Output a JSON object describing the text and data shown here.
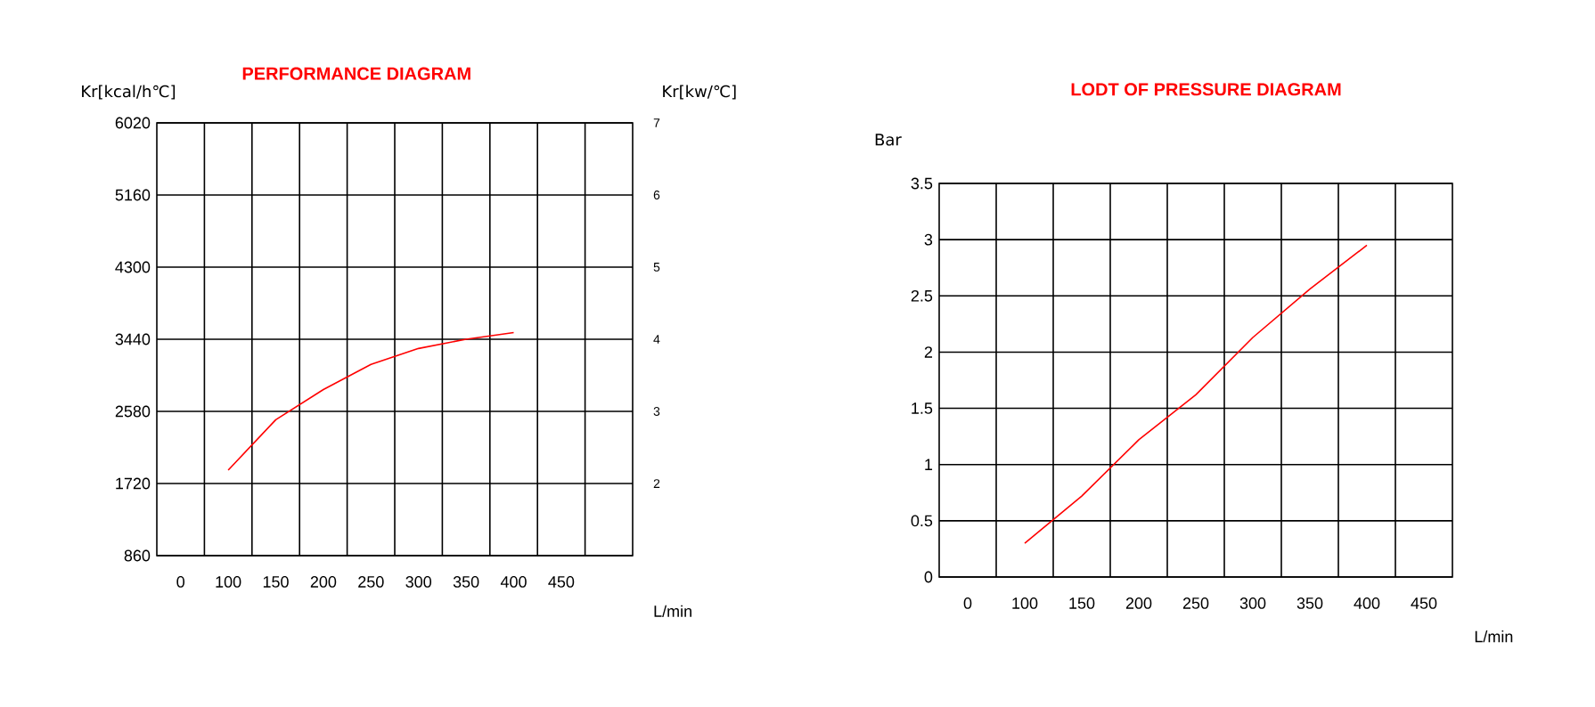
{
  "chart_data": [
    {
      "type": "line",
      "title": "PERFORMANCE DIAGRAM",
      "xlabel": "L/min",
      "ylabel": "Kr[kcal/h℃]",
      "y2label": "Kr[kw/℃]",
      "categories": [
        "0",
        "100",
        "150",
        "200",
        "250",
        "300",
        "350",
        "400",
        "450",
        null
      ],
      "ylim": [
        860,
        6020
      ],
      "yticks": [
        860,
        1720,
        2580,
        3440,
        4300,
        5160,
        6020
      ],
      "y2lim": [
        1,
        7
      ],
      "y2ticks": [
        2,
        3,
        4,
        5,
        6,
        7
      ],
      "grid": true,
      "series": [
        {
          "color": "#ff0000",
          "values": [
            null,
            1880,
            2480,
            2840,
            3140,
            3330,
            3440,
            3520,
            null,
            null
          ]
        }
      ]
    },
    {
      "type": "line",
      "title": "LODT OF PRESSURE DIAGRAM",
      "xlabel": "L/min",
      "ylabel": "Bar",
      "categories": [
        "0",
        "100",
        "150",
        "200",
        "250",
        "300",
        "350",
        "400",
        "450"
      ],
      "ylim": [
        0,
        3.5
      ],
      "yticks": [
        0,
        0.5,
        1,
        1.5,
        2,
        2.5,
        3,
        3.5
      ],
      "grid": true,
      "series": [
        {
          "color": "#ff0000",
          "values": [
            null,
            0.3,
            0.72,
            1.22,
            1.62,
            2.13,
            2.56,
            2.95,
            null
          ]
        }
      ]
    }
  ]
}
